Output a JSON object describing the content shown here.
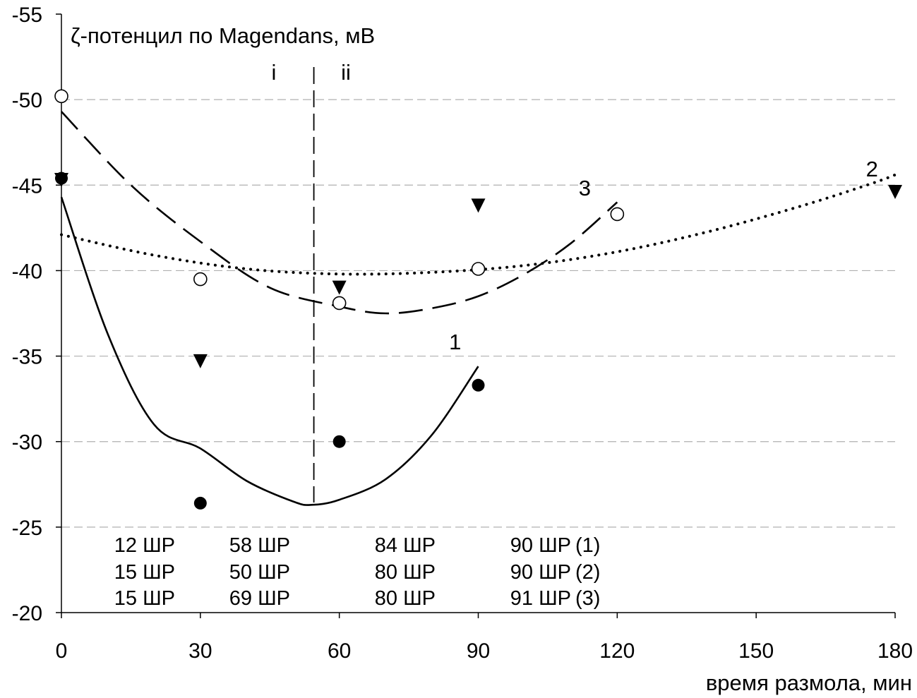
{
  "chart_data": {
    "type": "scatter",
    "title": "ζ-потенцил по Magendans, мВ",
    "xlabel": "время размола, мин",
    "ylabel": "",
    "xlim": [
      0,
      180
    ],
    "ylim": [
      -20,
      -55
    ],
    "x_ticks": [
      "0",
      "30",
      "60",
      "90",
      "120",
      "150",
      "180"
    ],
    "y_ticks": [
      "-20",
      "-25",
      "-30",
      "-35",
      "-40",
      "-45",
      "-50",
      "-55"
    ],
    "grid": "horizontal dashed",
    "series": [
      {
        "name": "1",
        "marker": "filled-circle",
        "line_style": "solid",
        "points": [
          [
            0,
            -45.4
          ],
          [
            30,
            -26.4
          ],
          [
            60,
            -30
          ],
          [
            90,
            -33.3
          ]
        ],
        "trend": [
          [
            0,
            -44.3
          ],
          [
            10,
            -36.3
          ],
          [
            20,
            -31.0
          ],
          [
            30,
            -29.6
          ],
          [
            40,
            -27.7
          ],
          [
            50,
            -26.5
          ],
          [
            54,
            -26.3
          ],
          [
            60,
            -26.6
          ],
          [
            70,
            -27.8
          ],
          [
            80,
            -30.4
          ],
          [
            90,
            -34.4
          ]
        ]
      },
      {
        "name": "2",
        "marker": "down-triangle",
        "line_style": "dotted",
        "points": [
          [
            0,
            -45.3
          ],
          [
            30,
            -34.7
          ],
          [
            60,
            -39
          ],
          [
            90,
            -43.8
          ],
          [
            180,
            -44.6
          ]
        ],
        "trend": [
          [
            0,
            -42.1
          ],
          [
            20,
            -40.9
          ],
          [
            40,
            -40.1
          ],
          [
            60,
            -39.8
          ],
          [
            80,
            -39.9
          ],
          [
            100,
            -40.3
          ],
          [
            120,
            -41.1
          ],
          [
            140,
            -42.3
          ],
          [
            160,
            -43.8
          ],
          [
            175,
            -45.1
          ],
          [
            180,
            -45.6
          ]
        ]
      },
      {
        "name": "3",
        "marker": "open-circle",
        "line_style": "long-dash",
        "points": [
          [
            0,
            -50.2
          ],
          [
            30,
            -39.5
          ],
          [
            60,
            -38.1
          ],
          [
            90,
            -40.1
          ],
          [
            120,
            -43.3
          ]
        ],
        "trend": [
          [
            0,
            -49.3
          ],
          [
            15,
            -45.0
          ],
          [
            30,
            -41.7
          ],
          [
            45,
            -39.0
          ],
          [
            60,
            -37.9
          ],
          [
            70,
            -37.5
          ],
          [
            80,
            -37.8
          ],
          [
            90,
            -38.5
          ],
          [
            100,
            -39.8
          ],
          [
            110,
            -41.6
          ],
          [
            120,
            -44.0
          ]
        ]
      }
    ],
    "divider_x": 54.5,
    "region_labels": [
      "i",
      "ii"
    ],
    "series_labels": [
      {
        "text": "1",
        "x": 85,
        "y": -35.4
      },
      {
        "text": "2",
        "x": 175,
        "y": -45.5
      },
      {
        "text": "3",
        "x": 113,
        "y": -44.4
      }
    ],
    "table_rows": [
      {
        "cells": [
          "12 ШР",
          "58 ШР",
          "84 ШР",
          "90 ШР"
        ],
        "tag": "(1)"
      },
      {
        "cells": [
          "15 ШР",
          "50 ШР",
          "80 ШР",
          "90 ШР"
        ],
        "tag": "(2)"
      },
      {
        "cells": [
          "15 ШР",
          "69 ШР",
          "80 ШР",
          "91 ШР"
        ],
        "tag": "(3)"
      }
    ]
  }
}
